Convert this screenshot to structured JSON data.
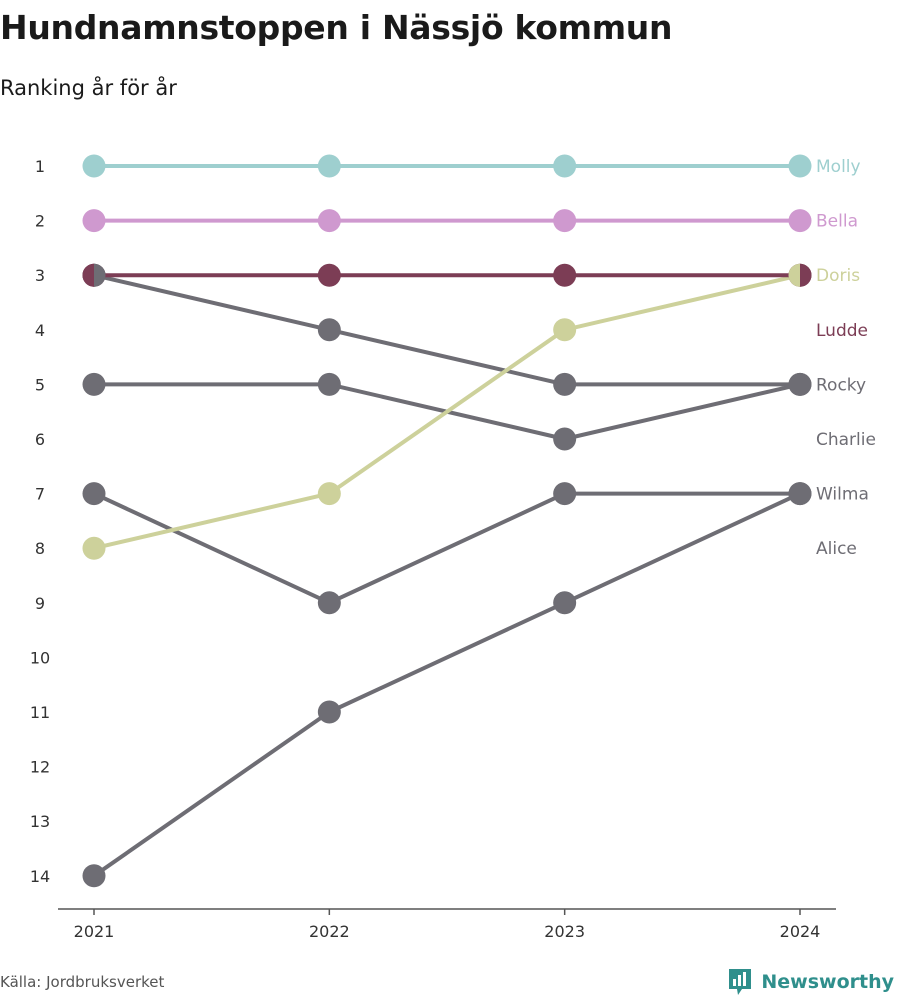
{
  "title": "Hundnamnstoppen i Nässjö kommun",
  "subtitle": "Ranking år för år",
  "source": "Källa: Jordbruksverket",
  "brand": {
    "name": "Newsworthy",
    "logo_icon": "bar-chart-logo-icon",
    "color": "#2f8f8c"
  },
  "chart_data": {
    "type": "line",
    "title": "Hundnamnstoppen i Nässjö kommun",
    "subtitle": "Ranking år för år",
    "xlabel": "",
    "ylabel": "",
    "x": [
      "2021",
      "2022",
      "2023",
      "2024"
    ],
    "y_ticks": [
      1,
      2,
      3,
      4,
      5,
      6,
      7,
      8,
      9,
      10,
      11,
      12,
      13,
      14
    ],
    "ylim": [
      14,
      1
    ],
    "y_reversed": true,
    "grid": false,
    "legend": "direct labels at right",
    "series": [
      {
        "name": "Molly",
        "color": "#9ecfcf",
        "values": [
          1,
          1,
          1,
          1
        ]
      },
      {
        "name": "Bella",
        "color": "#cf99cf",
        "values": [
          2,
          2,
          2,
          2
        ]
      },
      {
        "name": "Doris",
        "color": "#cdd19b",
        "values": [
          8,
          7,
          4,
          3
        ]
      },
      {
        "name": "Ludde",
        "color": "#7c3d55",
        "values": [
          3,
          3,
          3,
          3
        ]
      },
      {
        "name": "Rocky",
        "color": "#6e6d74",
        "values": [
          3,
          4,
          5,
          5
        ]
      },
      {
        "name": "Charlie",
        "color": "#6e6d74",
        "values": [
          5,
          5,
          6,
          5
        ]
      },
      {
        "name": "Wilma",
        "color": "#6e6d74",
        "values": [
          7,
          9,
          7,
          7
        ]
      },
      {
        "name": "Alice",
        "color": "#6e6d74",
        "values": [
          14,
          11,
          9,
          7
        ]
      }
    ],
    "label_ranks": {
      "Molly": 1,
      "Bella": 2,
      "Doris": 3,
      "Ludde": 4,
      "Rocky": 5,
      "Charlie": 6,
      "Wilma": 7,
      "Alice": 8
    },
    "label_colors": {
      "Molly": "#9ecfcf",
      "Bella": "#cf99cf",
      "Doris": "#cdd19b",
      "Ludde": "#7c3d55",
      "Rocky": "#6e6d74",
      "Charlie": "#6e6d74",
      "Wilma": "#6e6d74",
      "Alice": "#6e6d74"
    }
  }
}
